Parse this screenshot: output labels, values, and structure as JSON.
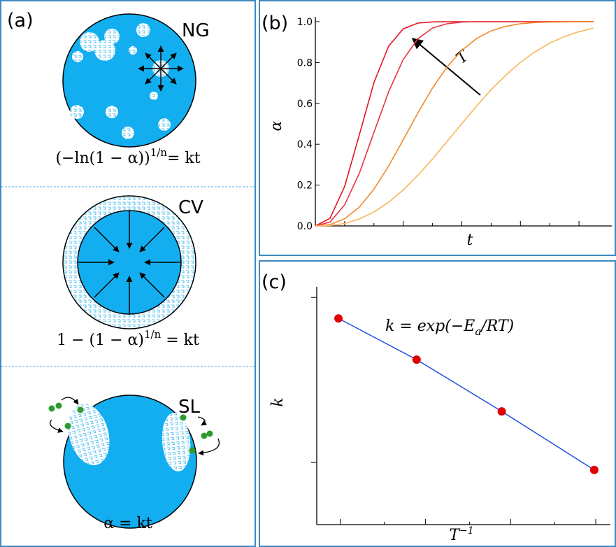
{
  "panels": {
    "a": {
      "label": "(a)",
      "mechanisms": [
        {
          "name": "NG",
          "equation": {
            "base": "(−ln(1 − α))",
            "sup": "1/n",
            "rest": "= kt"
          }
        },
        {
          "name": "CV",
          "equation": {
            "base": "1 − (1 − α)",
            "sup": "1/n",
            "rest": " = kt"
          }
        },
        {
          "name": "SL",
          "equation": {
            "base": "α = kt",
            "sup": "",
            "rest": ""
          }
        }
      ]
    }
  },
  "chart_data": [
    {
      "type": "line",
      "label": "(b)",
      "xlabel": "t",
      "ylabel": "α",
      "annotation": "T",
      "x": [
        0,
        0.05,
        0.1,
        0.15,
        0.2,
        0.25,
        0.3,
        0.35,
        0.4,
        0.45,
        0.5,
        0.55,
        0.6,
        0.65,
        0.7,
        0.75,
        0.8,
        0.85,
        0.9,
        0.95
      ],
      "xlim": [
        0,
        1
      ],
      "xticks": [
        0.1,
        0.2,
        0.3,
        0.4,
        0.5,
        0.6,
        0.7,
        0.8,
        0.9
      ],
      "ylim": [
        0,
        1
      ],
      "yticks": [
        {
          "value": 0,
          "label": "0.0"
        },
        {
          "value": 0.2,
          "label": "0.2"
        },
        {
          "value": 0.4,
          "label": "0.4"
        },
        {
          "value": 0.6,
          "label": "0.6"
        },
        {
          "value": 0.8,
          "label": "0.8"
        },
        {
          "value": 1,
          "label": "1.0"
        }
      ],
      "series": [
        {
          "color": "#e3141c",
          "values": [
            0,
            0.037,
            0.193,
            0.446,
            0.702,
            0.88,
            0.965,
            0.993,
            0.999,
            1,
            1,
            1,
            1,
            1,
            1,
            1,
            1,
            1,
            1,
            1
          ]
        },
        {
          "color": "#e8343f",
          "values": [
            0,
            0.019,
            0.103,
            0.258,
            0.458,
            0.657,
            0.815,
            0.916,
            0.969,
            0.99,
            0.998,
            1,
            1,
            1,
            1,
            1,
            1,
            1,
            1,
            1
          ]
        },
        {
          "color": "#f08a2c",
          "values": [
            0,
            0.006,
            0.035,
            0.092,
            0.18,
            0.293,
            0.422,
            0.553,
            0.675,
            0.779,
            0.86,
            0.917,
            0.955,
            0.977,
            0.99,
            0.996,
            0.998,
            0.999,
            1,
            1
          ]
        },
        {
          "color": "#f7b65a",
          "values": [
            0,
            0.002,
            0.012,
            0.034,
            0.068,
            0.116,
            0.176,
            0.248,
            0.328,
            0.414,
            0.501,
            0.586,
            0.667,
            0.738,
            0.801,
            0.853,
            0.895,
            0.927,
            0.951,
            0.969
          ]
        }
      ]
    },
    {
      "type": "scatter",
      "label": "(c)",
      "xlabel": {
        "base": "T",
        "sup": "−1"
      },
      "ylabel": "k",
      "annotation": {
        "base": "k = exp(−E",
        "sub": "a",
        "rest": "/RT)"
      },
      "log_y": true,
      "xlim": [
        0,
        1
      ],
      "xticks": [
        0.08,
        0.23,
        0.37,
        0.52,
        0.66,
        0.81,
        0.95
      ],
      "ylim": [
        0.42,
        11.6
      ],
      "yticks": [
        1,
        10
      ],
      "x": [
        0.074,
        0.34,
        0.63,
        0.945
      ],
      "values": [
        7.46,
        4.2,
        2.04,
        0.9
      ],
      "color": "#e00000",
      "fit_color": "#1f4fe0"
    }
  ]
}
